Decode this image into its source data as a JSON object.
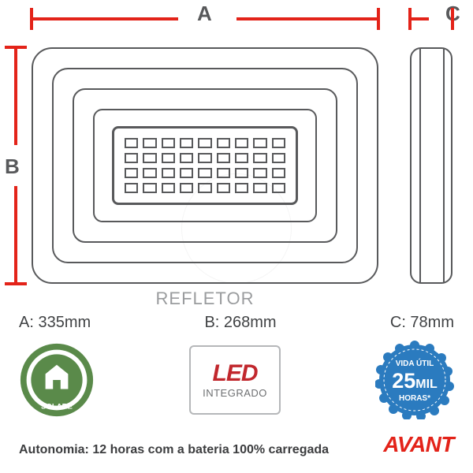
{
  "colors": {
    "dim_line": "#e32319",
    "outline": "#58595b",
    "caption": "#9a9c9e",
    "text": "#404244",
    "led_red": "#c1272d",
    "solare_green": "#5a8a4a",
    "solare_dark": "#3a6a34",
    "vida_blue": "#2b7bbf",
    "vida_blue_dark": "#1e5f99",
    "brand_red": "#e32319",
    "background": "#ffffff"
  },
  "dimensions_diagram": {
    "label_A": "A",
    "label_B": "B",
    "label_C": "C",
    "product_caption": "REFLETOR",
    "front_view": {
      "rings": 5,
      "led_grid_cols": 9,
      "led_grid_rows": 4
    }
  },
  "measurements": {
    "A": "A: 335mm",
    "B": "B: 268mm",
    "C": "C: 78mm"
  },
  "badges": {
    "solare": {
      "label": "SOLARE",
      "ring_outer_color": "#5a8a4a",
      "ring_inner_color": "#ffffff",
      "center_color": "#5a8a4a"
    },
    "led": {
      "main": "LED",
      "sub": "INTEGRADO"
    },
    "vida": {
      "line1": "VIDA ÚTIL",
      "line2_big": "25",
      "line2_small": "MIL",
      "line3": "HORAS*",
      "badge_color": "#2b7bbf",
      "badge_color_dark": "#1e5f99"
    }
  },
  "footer": {
    "autonomia": "Autonomia: 12 horas com a bateria 100% carregada",
    "brand": "AVANT"
  },
  "typography": {
    "dim_label_fontsize": 26,
    "caption_fontsize": 22,
    "measurement_fontsize": 20,
    "autonomia_fontsize": 16,
    "brand_fontsize": 28
  }
}
